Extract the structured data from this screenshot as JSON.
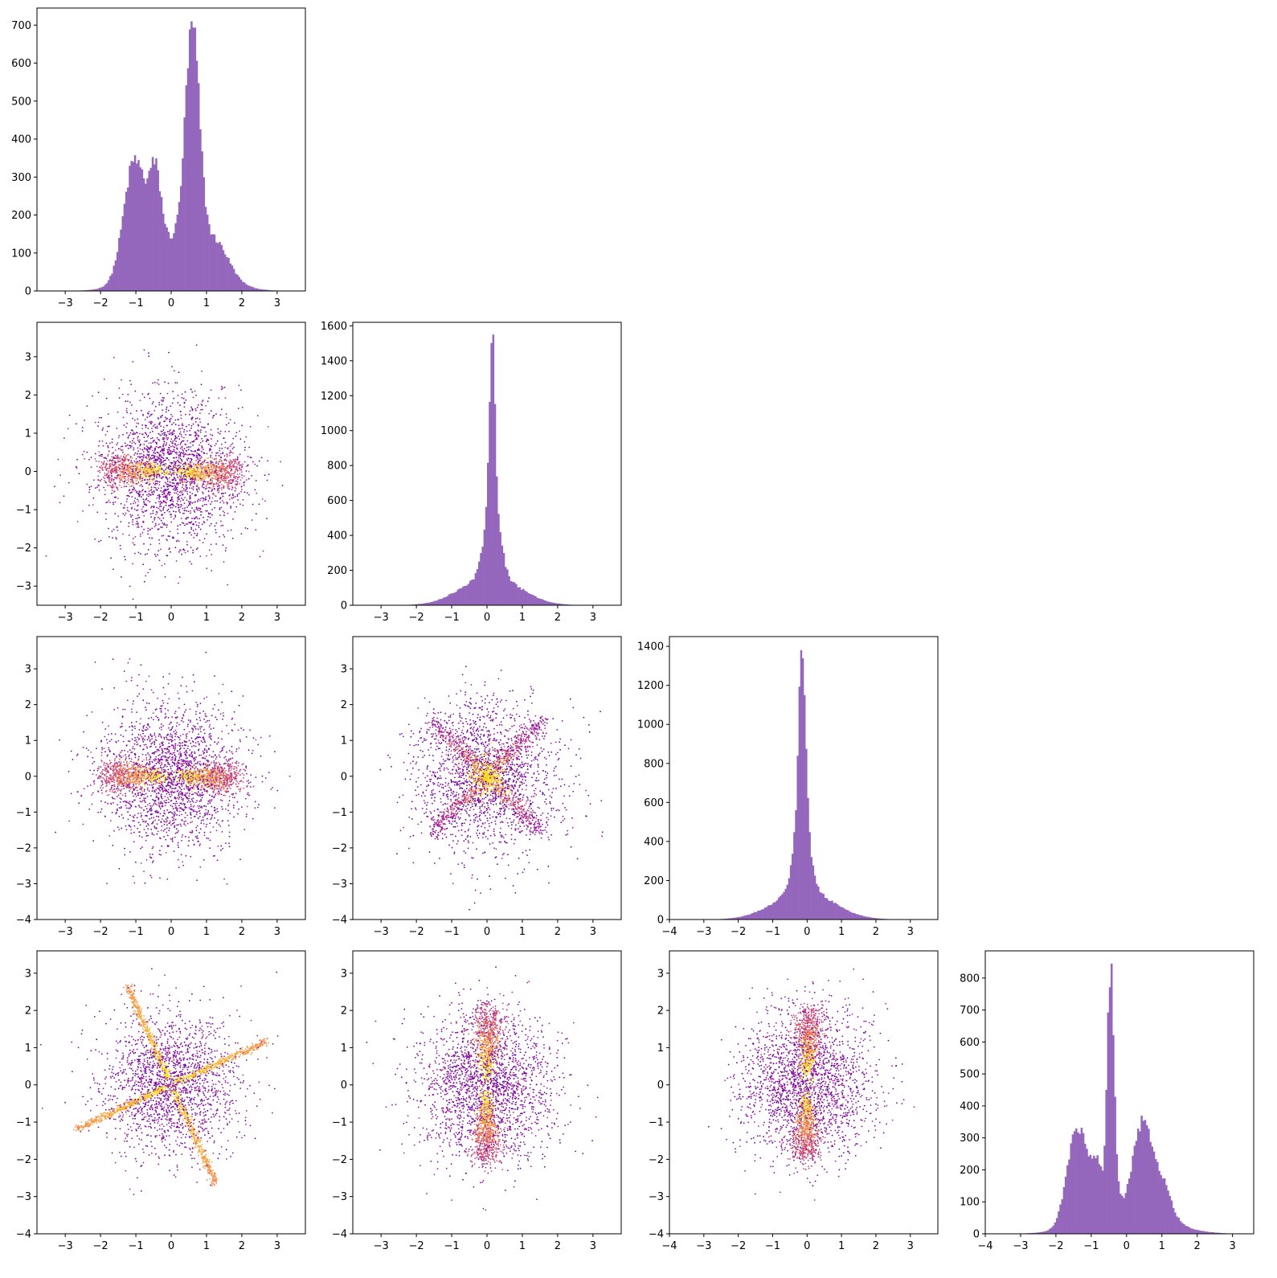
{
  "figure": {
    "layout": "4x4 lower-triangular corner plot"
  },
  "colors": {
    "hist_fill": "#9467bd",
    "colormap": "plasma",
    "axes": "#000000"
  },
  "chart_data": [
    {
      "type": "histogram",
      "row": 0,
      "col": 0,
      "xlim": [
        -3.8,
        3.8
      ],
      "ylim": [
        0,
        745
      ],
      "xticks": [
        -3,
        -2,
        -1,
        0,
        1,
        2,
        3
      ],
      "yticks": [
        0,
        100,
        200,
        300,
        400,
        500,
        600,
        700
      ],
      "bin_width": 0.05,
      "counts_anchor": "density",
      "components": [
        {
          "mu": 0.6,
          "sigma": 0.2,
          "peak": 500
        },
        {
          "mu": -1.05,
          "sigma": 0.3,
          "peak": 260
        },
        {
          "mu": -0.45,
          "sigma": 0.17,
          "peak": 170
        },
        {
          "mu": 0.2,
          "sigma": 0.9,
          "peak": 120
        },
        {
          "mu": 1.3,
          "sigma": 0.35,
          "peak": 60
        }
      ],
      "max_count": 710
    },
    {
      "type": "scatter",
      "row": 1,
      "col": 0,
      "xlim": [
        -3.8,
        3.8
      ],
      "ylim": [
        -3.5,
        3.9
      ],
      "xticks": [
        -3,
        -2,
        -1,
        0,
        1,
        2,
        3
      ],
      "yticks": [
        -3,
        -2,
        -1,
        0,
        1,
        2,
        3
      ],
      "pattern": "horizontal-bowtie"
    },
    {
      "type": "histogram",
      "row": 1,
      "col": 1,
      "xlim": [
        -3.8,
        3.8
      ],
      "ylim": [
        0,
        1620
      ],
      "xticks": [
        -3,
        -2,
        -1,
        0,
        1,
        2,
        3
      ],
      "yticks": [
        0,
        200,
        400,
        600,
        800,
        1000,
        1200,
        1400,
        1600
      ],
      "bin_width": 0.05,
      "components": [
        {
          "mu": 0.15,
          "sigma": 0.07,
          "peak": 900
        },
        {
          "mu": 0.15,
          "sigma": 0.2,
          "peak": 450
        },
        {
          "mu": 0.1,
          "sigma": 0.8,
          "peak": 160
        }
      ],
      "max_count": 1550
    },
    {
      "type": "scatter",
      "row": 2,
      "col": 0,
      "xlim": [
        -3.8,
        3.8
      ],
      "ylim": [
        -4.0,
        3.9
      ],
      "xticks": [
        -3,
        -2,
        -1,
        0,
        1,
        2,
        3
      ],
      "yticks": [
        -4,
        -3,
        -2,
        -1,
        0,
        1,
        2,
        3
      ],
      "pattern": "horizontal-bowtie"
    },
    {
      "type": "scatter",
      "row": 2,
      "col": 1,
      "xlim": [
        -3.8,
        3.8
      ],
      "ylim": [
        -4.0,
        3.9
      ],
      "xticks": [
        -3,
        -2,
        -1,
        0,
        1,
        2,
        3
      ],
      "yticks": [
        -4,
        -3,
        -2,
        -1,
        0,
        1,
        2,
        3
      ],
      "pattern": "x-cross-with-core"
    },
    {
      "type": "histogram",
      "row": 2,
      "col": 2,
      "xlim": [
        -4.0,
        3.8
      ],
      "ylim": [
        0,
        1450
      ],
      "xticks": [
        -4,
        -3,
        -2,
        -1,
        0,
        1,
        2,
        3
      ],
      "yticks": [
        0,
        200,
        400,
        600,
        800,
        1000,
        1200,
        1400
      ],
      "bin_width": 0.05,
      "components": [
        {
          "mu": -0.15,
          "sigma": 0.1,
          "peak": 850
        },
        {
          "mu": -0.15,
          "sigma": 0.22,
          "peak": 380
        },
        {
          "mu": -0.1,
          "sigma": 0.85,
          "peak": 150
        }
      ],
      "max_count": 1380
    },
    {
      "type": "scatter",
      "row": 3,
      "col": 0,
      "xlim": [
        -3.8,
        3.8
      ],
      "ylim": [
        -4.0,
        3.6
      ],
      "xticks": [
        -3,
        -2,
        -1,
        0,
        1,
        2,
        3
      ],
      "yticks": [
        -4,
        -3,
        -2,
        -1,
        0,
        1,
        2,
        3
      ],
      "pattern": "pinwheel"
    },
    {
      "type": "scatter",
      "row": 3,
      "col": 1,
      "xlim": [
        -3.8,
        3.8
      ],
      "ylim": [
        -4.0,
        3.6
      ],
      "xticks": [
        -3,
        -2,
        -1,
        0,
        1,
        2,
        3
      ],
      "yticks": [
        -4,
        -3,
        -2,
        -1,
        0,
        1,
        2,
        3
      ],
      "pattern": "vertical-bowtie"
    },
    {
      "type": "scatter",
      "row": 3,
      "col": 2,
      "xlim": [
        -4.0,
        3.8
      ],
      "ylim": [
        -4.0,
        3.6
      ],
      "xticks": [
        -4,
        -3,
        -2,
        -1,
        0,
        1,
        2,
        3
      ],
      "yticks": [
        -4,
        -3,
        -2,
        -1,
        0,
        1,
        2,
        3
      ],
      "pattern": "vertical-bowtie"
    },
    {
      "type": "histogram",
      "row": 3,
      "col": 3,
      "xlim": [
        -4.0,
        3.6
      ],
      "ylim": [
        0,
        885
      ],
      "xticks": [
        -4,
        -3,
        -2,
        -1,
        0,
        1,
        2,
        3
      ],
      "yticks": [
        0,
        100,
        200,
        300,
        400,
        500,
        600,
        700,
        800
      ],
      "bin_width": 0.05,
      "components": [
        {
          "mu": -0.45,
          "sigma": 0.1,
          "peak": 500
        },
        {
          "mu": -1.4,
          "sigma": 0.28,
          "peak": 200
        },
        {
          "mu": -0.85,
          "sigma": 0.15,
          "peak": 90
        },
        {
          "mu": 0.45,
          "sigma": 0.25,
          "peak": 170
        },
        {
          "mu": 1.0,
          "sigma": 0.25,
          "peak": 70
        },
        {
          "mu": 0.0,
          "sigma": 1.0,
          "peak": 60
        }
      ],
      "max_count": 845
    }
  ]
}
